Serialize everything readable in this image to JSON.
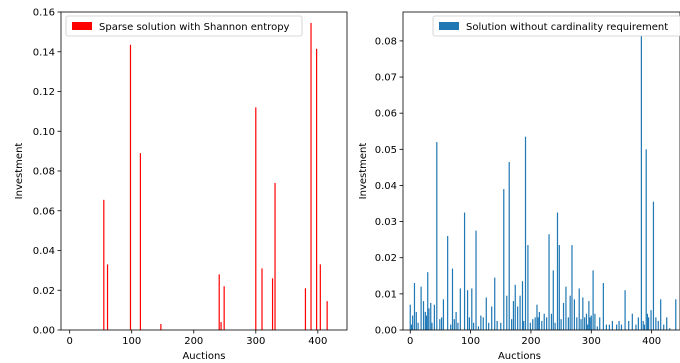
{
  "chart_data": [
    {
      "type": "bar",
      "title": "",
      "xlabel": "Auctions",
      "ylabel": "Investment",
      "xlim": [
        -14,
        447
      ],
      "ylim": [
        0,
        0.16
      ],
      "xticks": [
        0,
        100,
        200,
        300,
        400
      ],
      "xtick_labels": [
        "0",
        "100",
        "200",
        "300",
        "400"
      ],
      "yticks": [
        0.0,
        0.02,
        0.04,
        0.06,
        0.08,
        0.1,
        0.12,
        0.14,
        0.16
      ],
      "ytick_labels": [
        "0.00",
        "0.02",
        "0.04",
        "0.06",
        "0.08",
        "0.10",
        "0.12",
        "0.14",
        "0.16"
      ],
      "grid": false,
      "legend_position": "top-left",
      "series": [
        {
          "name": "Sparse solution with Shannon entropy",
          "color": "#ff0000",
          "x": [
            55,
            61,
            98,
            114,
            147,
            241,
            244,
            249,
            300,
            310,
            327,
            331,
            380,
            389,
            398,
            404,
            415
          ],
          "values": [
            0.0655,
            0.033,
            0.1435,
            0.089,
            0.003,
            0.028,
            0.004,
            0.022,
            0.112,
            0.031,
            0.026,
            0.074,
            0.021,
            0.1545,
            0.1415,
            0.033,
            0.0145
          ]
        }
      ]
    },
    {
      "type": "bar",
      "title": "",
      "xlabel": "Auctions",
      "ylabel": "Investment",
      "xlim": [
        -12,
        447
      ],
      "ylim": [
        0,
        0.088
      ],
      "xticks": [
        0,
        100,
        200,
        300,
        400
      ],
      "xtick_labels": [
        "0",
        "100",
        "200",
        "300",
        "400"
      ],
      "yticks": [
        0.0,
        0.01,
        0.02,
        0.03,
        0.04,
        0.05,
        0.06,
        0.07,
        0.08
      ],
      "ytick_labels": [
        "0.00",
        "0.01",
        "0.02",
        "0.03",
        "0.04",
        "0.05",
        "0.06",
        "0.07",
        "0.08"
      ],
      "grid": false,
      "legend_position": "top-right",
      "series": [
        {
          "name": "Solution without cardinality requirement",
          "color": "#1f77b4",
          "x": [
            0,
            2,
            4,
            7,
            10,
            13,
            18,
            22,
            25,
            27,
            29,
            31,
            34,
            36,
            40,
            44,
            49,
            52,
            55,
            62,
            67,
            70,
            73,
            76,
            79,
            83,
            90,
            95,
            98,
            102,
            105,
            109,
            113,
            117,
            121,
            126,
            130,
            135,
            140,
            144,
            150,
            155,
            160,
            164,
            168,
            171,
            174,
            178,
            182,
            186,
            188,
            191,
            195,
            199,
            203,
            207,
            210,
            212,
            214,
            218,
            222,
            226,
            230,
            234,
            237,
            240,
            244,
            247,
            250,
            254,
            258,
            262,
            265,
            268,
            272,
            276,
            280,
            283,
            286,
            289,
            292,
            294,
            296,
            298,
            300,
            303,
            306,
            310,
            314,
            320,
            325,
            330,
            335,
            342,
            346,
            350,
            356,
            362,
            368,
            374,
            378,
            383,
            386,
            388,
            391,
            393,
            395,
            399,
            403,
            407,
            411,
            415,
            420,
            425,
            430,
            440
          ],
          "values": [
            0.007,
            0.0015,
            0.004,
            0.013,
            0.005,
            0.002,
            0.012,
            0.008,
            0.005,
            0.004,
            0.016,
            0.006,
            0.0075,
            0.002,
            0.007,
            0.052,
            0.003,
            0.0035,
            0.0085,
            0.026,
            0.0015,
            0.017,
            0.003,
            0.005,
            0.002,
            0.0115,
            0.0325,
            0.011,
            0.0035,
            0.0115,
            0.002,
            0.0275,
            0.001,
            0.004,
            0.0035,
            0.009,
            0.002,
            0.0065,
            0.0145,
            0.0025,
            0.002,
            0.039,
            0.0095,
            0.0465,
            0.003,
            0.008,
            0.0125,
            0.0065,
            0.0095,
            0.0135,
            0.0025,
            0.0535,
            0.0235,
            0.002,
            0.003,
            0.0035,
            0.007,
            0.0035,
            0.005,
            0.0025,
            0.0045,
            0.0035,
            0.0265,
            0.0045,
            0.0165,
            0.002,
            0.0325,
            0.0235,
            0.003,
            0.0075,
            0.012,
            0.0035,
            0.0095,
            0.0235,
            0.0085,
            0.0035,
            0.0115,
            0.003,
            0.009,
            0.0035,
            0.0045,
            0.0015,
            0.008,
            0.0035,
            0.004,
            0.0165,
            0.0045,
            0.001,
            0.0035,
            0.013,
            0.0015,
            0.0015,
            0.0025,
            0.0015,
            0.0025,
            0.0015,
            0.011,
            0.0025,
            0.0045,
            0.0015,
            0.0035,
            0.0815,
            0.0025,
            0.0015,
            0.05,
            0.0045,
            0.0035,
            0.0055,
            0.0355,
            0.0035,
            0.0025,
            0.0085,
            0.0015,
            0.0035,
            0.0005,
            0.0085
          ]
        }
      ]
    }
  ]
}
